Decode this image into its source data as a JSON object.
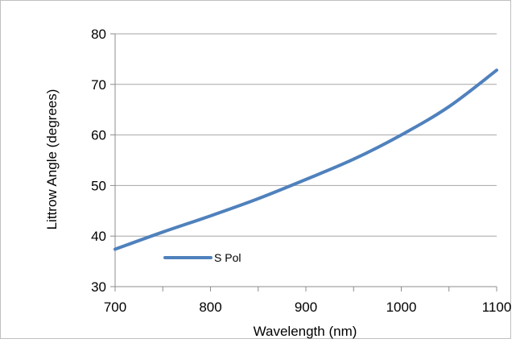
{
  "chart_data": {
    "type": "line",
    "title": "",
    "xlabel": "Wavelength (nm)",
    "ylabel": "Littrow Angle (degrees)",
    "xlim": [
      700,
      1100
    ],
    "ylim": [
      30,
      80
    ],
    "x_ticks": [
      700,
      800,
      900,
      1000,
      1100
    ],
    "y_ticks": [
      30,
      40,
      50,
      60,
      70,
      80
    ],
    "grid": "horizontal",
    "legend_position": "bottom-left",
    "series": [
      {
        "name": "S Pol",
        "color": "#4f81bd",
        "x": [
          700,
          750,
          800,
          850,
          900,
          950,
          1000,
          1050,
          1100
        ],
        "y": [
          37.4,
          40.8,
          44.0,
          47.4,
          51.2,
          55.2,
          60.0,
          65.6,
          72.8
        ]
      }
    ]
  }
}
